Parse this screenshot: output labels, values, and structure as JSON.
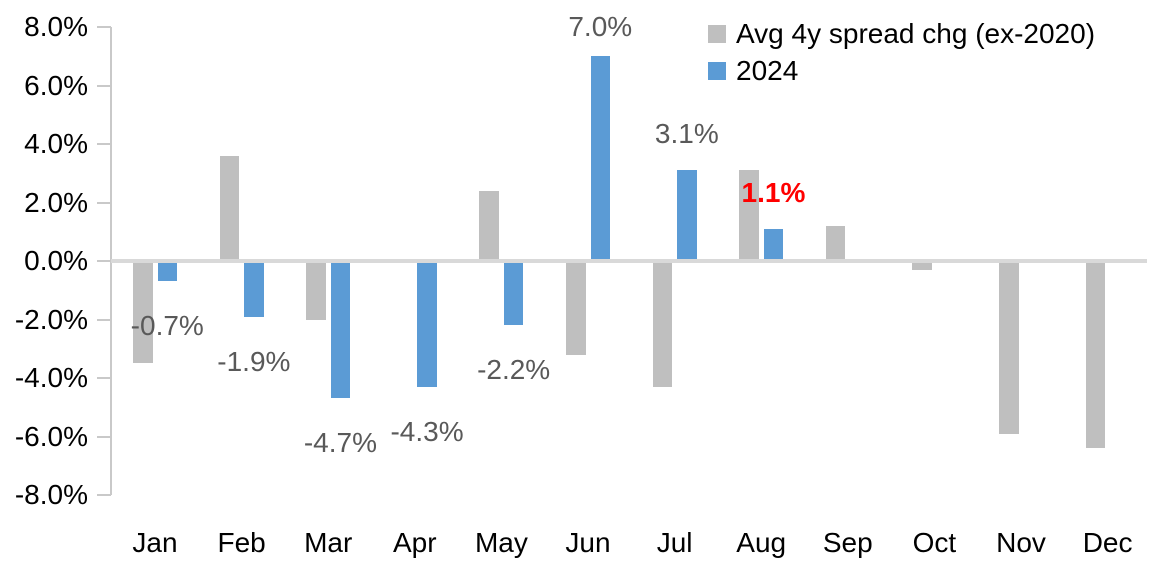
{
  "chart_data": {
    "type": "bar",
    "title": "",
    "xlabel": "",
    "ylabel": "",
    "categories": [
      "Jan",
      "Feb",
      "Mar",
      "Apr",
      "May",
      "Jun",
      "Jul",
      "Aug",
      "Sep",
      "Oct",
      "Nov",
      "Dec"
    ],
    "series": [
      {
        "name": "Avg 4y spread chg (ex-2020)",
        "color": "#bfbfbf",
        "values": [
          -3.5,
          3.6,
          -2.0,
          0.0,
          2.4,
          -3.2,
          -4.3,
          3.1,
          1.2,
          -0.3,
          -5.9,
          -6.4
        ]
      },
      {
        "name": "2024",
        "color": "#5b9bd5",
        "values": [
          -0.7,
          -1.9,
          -4.7,
          -4.3,
          -2.2,
          7.0,
          3.1,
          1.1,
          null,
          null,
          null,
          null
        ]
      }
    ],
    "data_labels": [
      {
        "category_index": 0,
        "text": "-0.7%",
        "color": "#595959",
        "bold": false
      },
      {
        "category_index": 1,
        "text": "-1.9%",
        "color": "#595959",
        "bold": false
      },
      {
        "category_index": 2,
        "text": "-4.7%",
        "color": "#595959",
        "bold": false
      },
      {
        "category_index": 3,
        "text": "-4.3%",
        "color": "#595959",
        "bold": false
      },
      {
        "category_index": 4,
        "text": "-2.2%",
        "color": "#595959",
        "bold": false
      },
      {
        "category_index": 5,
        "text": "7.0%",
        "color": "#595959",
        "bold": false
      },
      {
        "category_index": 6,
        "text": "3.1%",
        "color": "#595959",
        "bold": false
      },
      {
        "category_index": 7,
        "text": "1.1%",
        "color": "#ff0000",
        "bold": true
      }
    ],
    "ylim": [
      -8,
      8
    ],
    "ytick_labels": [
      "8.0%",
      "6.0%",
      "4.0%",
      "2.0%",
      "0.0%",
      "-2.0%",
      "-4.0%",
      "-6.0%",
      "-8.0%"
    ],
    "grid": "zero-line-only",
    "legend_position": "top-right"
  },
  "legend": {
    "items": [
      {
        "label": "Avg 4y spread chg (ex-2020)",
        "color": "#bfbfbf"
      },
      {
        "label": "2024",
        "color": "#5b9bd5"
      }
    ]
  },
  "colors": {
    "gray_series": "#bfbfbf",
    "blue_series": "#5b9bd5",
    "data_label_gray": "#595959",
    "data_label_red": "#ff0000",
    "zero_line": "#d9d9d9",
    "axis_line": "#c9c9c9",
    "axis_text": "#000000",
    "background": "#ffffff"
  }
}
